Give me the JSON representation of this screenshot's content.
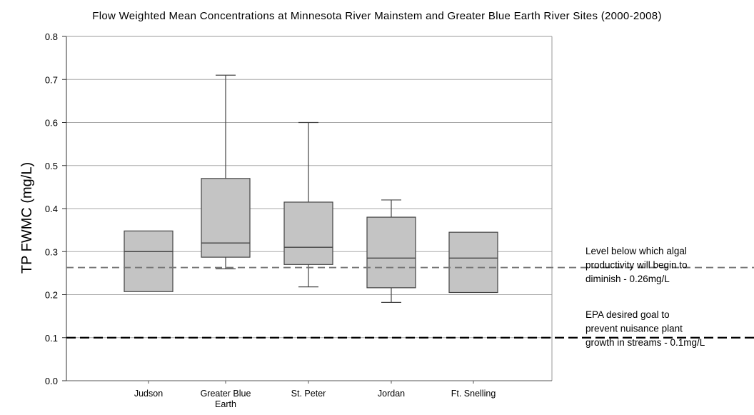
{
  "chart_data": {
    "type": "box",
    "title": "Flow Weighted Mean Concentrations at Minnesota River Mainstem and Greater Blue Earth River Sites (2000-2008)",
    "ylabel": "TP FWMC (mg/L)",
    "xlabel": "",
    "ylim": [
      0,
      0.8
    ],
    "yticks": [
      "0.0",
      "0.1",
      "0.2",
      "0.3",
      "0.4",
      "0.5",
      "0.6",
      "0.7",
      "0.8"
    ],
    "grid": "horizontal",
    "categories": [
      [
        "Judson"
      ],
      [
        "Greater Blue",
        "Earth"
      ],
      [
        "St. Peter"
      ],
      [
        "Jordan"
      ],
      [
        "Ft. Snelling"
      ]
    ],
    "boxes": [
      {
        "whisker_low": null,
        "q1": 0.207,
        "median": 0.3,
        "q3": 0.348,
        "whisker_high": null
      },
      {
        "whisker_low": 0.26,
        "q1": 0.287,
        "median": 0.32,
        "q3": 0.47,
        "whisker_high": 0.71
      },
      {
        "whisker_low": 0.218,
        "q1": 0.27,
        "median": 0.31,
        "q3": 0.415,
        "whisker_high": 0.6
      },
      {
        "whisker_low": 0.182,
        "q1": 0.216,
        "median": 0.285,
        "q3": 0.38,
        "whisker_high": 0.42
      },
      {
        "whisker_low": null,
        "q1": 0.205,
        "median": 0.285,
        "q3": 0.345,
        "whisker_high": null
      }
    ],
    "reference_lines": [
      {
        "value": 0.263,
        "style": "dashed",
        "color": "#777777",
        "label": [
          "Level below which algal",
          "productivity will begin to",
          "diminish - 0.26mg/L"
        ]
      },
      {
        "value": 0.1,
        "style": "dashed",
        "color": "#000000",
        "label": [
          "EPA desired goal to",
          "prevent nuisance plant",
          "growth in streams - 0.1mg/L"
        ]
      }
    ],
    "colors": {
      "box_fill": "#c4c4c4",
      "box_stroke": "#444444",
      "grid": "#a8a8a8",
      "frame": "#999999"
    }
  }
}
